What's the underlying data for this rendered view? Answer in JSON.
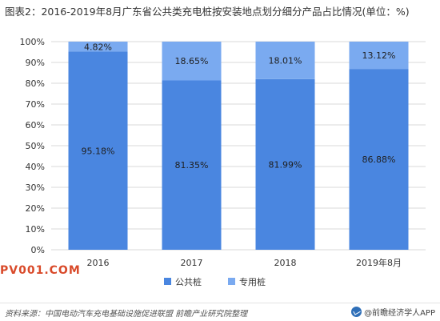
{
  "title": "图表2：2016-2019年8月广东省公共类充电桩按安装地点划分细分产品占比情况(单位：%)",
  "chart_data": {
    "type": "bar",
    "stacked": true,
    "categories": [
      "2016",
      "2017",
      "2018",
      "2019年8月"
    ],
    "series": [
      {
        "name": "公共桩",
        "values": [
          95.18,
          81.35,
          81.99,
          86.88
        ],
        "labels": [
          "95.18%",
          "81.35%",
          "81.99%",
          "86.88%"
        ],
        "color": "#4a86e0"
      },
      {
        "name": "专用桩",
        "values": [
          4.82,
          18.65,
          18.01,
          13.12
        ],
        "labels": [
          "4.82%",
          "18.65%",
          "18.01%",
          "13.12%"
        ],
        "color": "#7aaaf0"
      }
    ],
    "ylim": [
      0,
      100
    ],
    "yticks": [
      0,
      10,
      20,
      30,
      40,
      50,
      60,
      70,
      80,
      90,
      100
    ],
    "ytick_labels": [
      "0%",
      "10%",
      "20%",
      "30%",
      "40%",
      "50%",
      "60%",
      "70%",
      "80%",
      "90%",
      "100%"
    ],
    "legend_position": "bottom",
    "grid": true
  },
  "watermark": "PV001.COM",
  "footer": {
    "source": "资料来源：中国电动汽车充电基础设施促进联盟 前瞻产业研究院整理",
    "brand": "@前瞻经济学人APP"
  }
}
